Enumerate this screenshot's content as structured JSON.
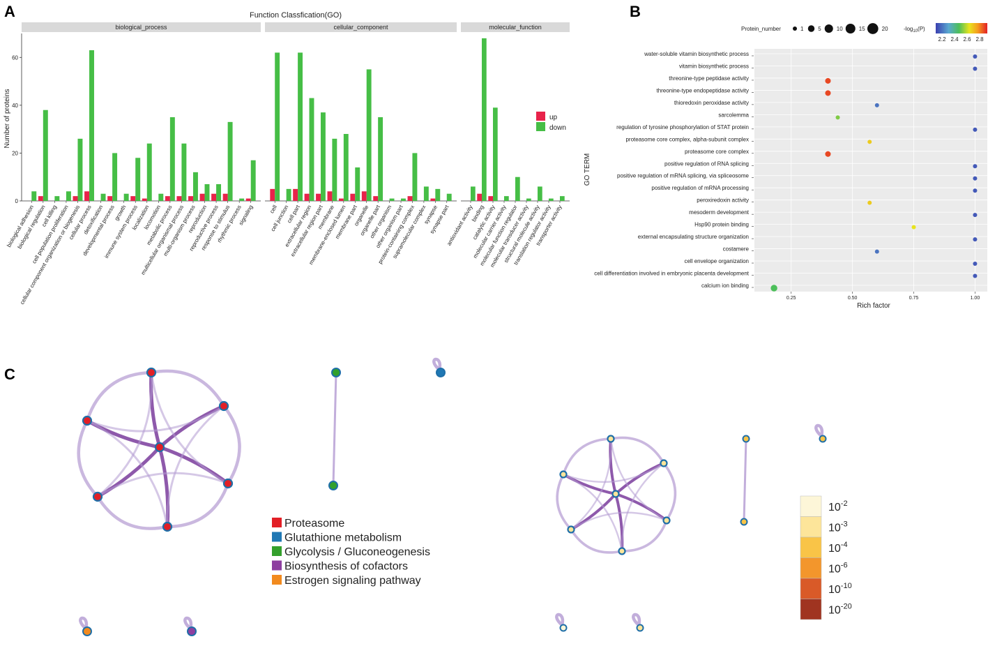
{
  "panels": {
    "a": "A",
    "b": "B",
    "c": "C"
  },
  "colors": {
    "up": "#e8234a",
    "down": "#46be46",
    "strip": "#d9d9d9",
    "edge": "#7a3c9c",
    "edge_light": "#b39ad2",
    "node_border": "#1f6fa8"
  },
  "chart_data": [
    {
      "type": "bar",
      "title": "Function Classfication(GO)",
      "ylabel": "Number of proteins",
      "ylim": [
        0,
        70
      ],
      "yticks": [
        0,
        20,
        40,
        60
      ],
      "legend": {
        "position": "right",
        "entries": [
          "up",
          "down"
        ]
      },
      "facets": [
        {
          "name": "biological_process",
          "categories": [
            "biological adhesion",
            "biological regulation",
            "cell killing",
            "cell population proliferation",
            "cellular component organization or biogenesis",
            "cellular process",
            "detoxification",
            "developmental process",
            "growth",
            "immune system process",
            "localization",
            "locomotion",
            "metabolic process",
            "multicellular organismal process",
            "multi-organism process",
            "reproduction",
            "reproductive process",
            "response to stimulus",
            "rhythmic process",
            "signaling"
          ],
          "series": [
            {
              "name": "up",
              "values": [
                0,
                2,
                0,
                0,
                2,
                4,
                0,
                2,
                0,
                2,
                1,
                0,
                2,
                2,
                2,
                3,
                3,
                3,
                0,
                1
              ]
            },
            {
              "name": "down",
              "values": [
                4,
                38,
                2,
                4,
                26,
                63,
                3,
                20,
                3,
                18,
                24,
                3,
                35,
                24,
                12,
                7,
                7,
                33,
                1,
                17
              ]
            }
          ]
        },
        {
          "name": "cellular_component",
          "categories": [
            "cell",
            "cell junction",
            "cell part",
            "extracellular region",
            "extracellular region part",
            "membrane",
            "membrane-enclosed lumen",
            "membrane part",
            "organelle",
            "organelle part",
            "other organism",
            "other organism part",
            "protein-containing complex",
            "supramolecular complex",
            "synapse",
            "synapse part"
          ],
          "series": [
            {
              "name": "up",
              "values": [
                5,
                0,
                5,
                3,
                3,
                4,
                1,
                3,
                4,
                2,
                0,
                0,
                2,
                0,
                1,
                0
              ]
            },
            {
              "name": "down",
              "values": [
                62,
                5,
                62,
                43,
                37,
                26,
                28,
                14,
                55,
                35,
                1,
                1,
                20,
                6,
                5,
                3
              ]
            }
          ]
        },
        {
          "name": "molecular_function",
          "categories": [
            "antioxidant activity",
            "binding",
            "catalytic activity",
            "molecular carrier activity",
            "molecular function regulator",
            "molecular transducer activity",
            "structural molecule activity",
            "translation regulator activity",
            "transporter activity"
          ],
          "series": [
            {
              "name": "up",
              "values": [
                0,
                3,
                2,
                0,
                0,
                0,
                0,
                0,
                0
              ]
            },
            {
              "name": "down",
              "values": [
                6,
                68,
                39,
                2,
                10,
                1,
                6,
                1,
                2
              ]
            }
          ]
        }
      ]
    },
    {
      "type": "scatter",
      "xlabel": "Rich factor",
      "ylabel": "GO TERM",
      "xlim": [
        0.1,
        1.05
      ],
      "xticks": [
        0.25,
        0.5,
        0.75,
        1.0
      ],
      "xtick_labels": [
        "0.25",
        "0.50",
        "0.75",
        "1.00"
      ],
      "size_legend_title": "Protein_number",
      "size_legend": [
        1,
        5,
        10,
        15,
        20
      ],
      "color_legend_title": "-log10(P)",
      "color_legend_ticks": [
        "2.2",
        "2.4",
        "2.6",
        "2.8"
      ],
      "terms": [
        "water-soluble vitamin biosynthetic process",
        "vitamin biosynthetic process",
        "threonine-type peptidase activity",
        "threonine-type endopeptidase activity",
        "thioredoxin peroxidase activity",
        "sarcolemma",
        "regulation of tyrosine phosphorylation of STAT protein",
        "proteasome core complex, alpha-subunit complex",
        "proteasome core complex",
        "positive regulation of RNA splicing",
        "positive regulation of mRNA splicing, via spliceosome",
        "positive regulation of mRNA processing",
        "peroxiredoxin activity",
        "mesoderm development",
        "Hsp90 protein binding",
        "external encapsulating structure organization",
        "costamere",
        "cell envelope organization",
        "cell differentiation involved in embryonic placenta development",
        "calcium ion binding"
      ],
      "points": [
        {
          "x": 1.0,
          "size": 1,
          "logp": 2.15
        },
        {
          "x": 1.0,
          "size": 1,
          "logp": 2.15
        },
        {
          "x": 0.4,
          "size": 3,
          "logp": 2.85
        },
        {
          "x": 0.4,
          "size": 3,
          "logp": 2.85
        },
        {
          "x": 0.6,
          "size": 1,
          "logp": 2.2
        },
        {
          "x": 0.44,
          "size": 1,
          "logp": 2.5
        },
        {
          "x": 1.0,
          "size": 1,
          "logp": 2.15
        },
        {
          "x": 0.57,
          "size": 1,
          "logp": 2.65
        },
        {
          "x": 0.4,
          "size": 3,
          "logp": 2.85
        },
        {
          "x": 1.0,
          "size": 1,
          "logp": 2.15
        },
        {
          "x": 1.0,
          "size": 1,
          "logp": 2.15
        },
        {
          "x": 1.0,
          "size": 1,
          "logp": 2.15
        },
        {
          "x": 0.57,
          "size": 1,
          "logp": 2.65
        },
        {
          "x": 1.0,
          "size": 1,
          "logp": 2.15
        },
        {
          "x": 0.75,
          "size": 1,
          "logp": 2.6
        },
        {
          "x": 1.0,
          "size": 1,
          "logp": 2.15
        },
        {
          "x": 0.6,
          "size": 1,
          "logp": 2.2
        },
        {
          "x": 1.0,
          "size": 1,
          "logp": 2.15
        },
        {
          "x": 1.0,
          "size": 1,
          "logp": 2.15
        },
        {
          "x": 0.18,
          "size": 5,
          "logp": 2.45
        }
      ]
    }
  ],
  "network": {
    "legend": [
      {
        "label": "Proteasome",
        "color": "#e21f26"
      },
      {
        "label": "Glutathione metabolism",
        "color": "#1f78b4"
      },
      {
        "label": "Glycolysis / Gluconeogenesis",
        "color": "#33a02c"
      },
      {
        "label": "Biosynthesis of cofactors",
        "color": "#8e3fa0"
      },
      {
        "label": "Estrogen signaling pathway",
        "color": "#f28a1e"
      }
    ],
    "pvalue_legend": [
      {
        "base": "10",
        "exp": "-2",
        "color": "#fdf6d8"
      },
      {
        "base": "10",
        "exp": "-3",
        "color": "#fde59a"
      },
      {
        "base": "10",
        "exp": "-4",
        "color": "#f9c447"
      },
      {
        "base": "10",
        "exp": "-6",
        "color": "#f3962c"
      },
      {
        "base": "10",
        "exp": "-10",
        "color": "#d95a28"
      },
      {
        "base": "10",
        "exp": "-20",
        "color": "#a03420"
      }
    ]
  }
}
